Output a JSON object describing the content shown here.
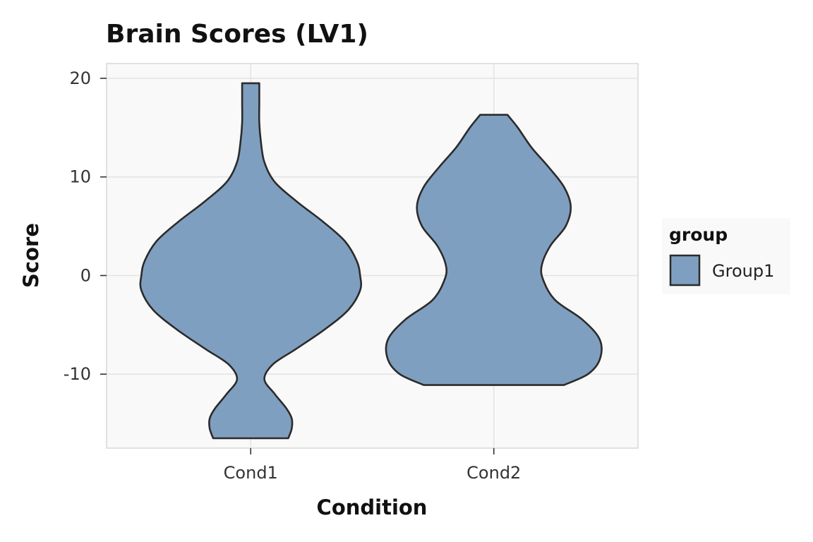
{
  "chart_data": {
    "type": "violin",
    "title": "Brain Scores (LV1)",
    "xlabel": "Condition",
    "ylabel": "Score",
    "categories": [
      "Cond1",
      "Cond2"
    ],
    "ylim": [
      -17.5,
      21.5
    ],
    "yticks": [
      20,
      10,
      0,
      -10
    ],
    "ytick_labels": [
      "20",
      "10",
      "0",
      "-10"
    ],
    "grid": true,
    "legend": {
      "title": "group",
      "position": "right",
      "entries": [
        "Group1"
      ]
    },
    "series": [
      {
        "name": "Group1",
        "color": "#7f9fc0",
        "outline": "#2b2b2b",
        "violins": [
          {
            "category": "Cond1",
            "min": -16.5,
            "max": 19.5,
            "profile": [
              [
                -16.5,
                0.22
              ],
              [
                -15.5,
                0.24
              ],
              [
                -14.5,
                0.24
              ],
              [
                -13.5,
                0.21
              ],
              [
                -12,
                0.14
              ],
              [
                -10.5,
                0.08
              ],
              [
                -9,
                0.13
              ],
              [
                -7.5,
                0.26
              ],
              [
                -5.5,
                0.43
              ],
              [
                -3.5,
                0.57
              ],
              [
                -1.5,
                0.64
              ],
              [
                0,
                0.64
              ],
              [
                1.5,
                0.62
              ],
              [
                3.5,
                0.55
              ],
              [
                5.5,
                0.42
              ],
              [
                7.5,
                0.27
              ],
              [
                9.5,
                0.14
              ],
              [
                11.5,
                0.08
              ],
              [
                13.5,
                0.06
              ],
              [
                15.5,
                0.05
              ],
              [
                17.5,
                0.05
              ],
              [
                19.5,
                0.05
              ]
            ]
          },
          {
            "category": "Cond2",
            "min": -11.1,
            "max": 16.3,
            "profile": [
              [
                -11.1,
                0.41
              ],
              [
                -10,
                0.55
              ],
              [
                -8.5,
                0.62
              ],
              [
                -6.5,
                0.62
              ],
              [
                -4.5,
                0.52
              ],
              [
                -2.5,
                0.36
              ],
              [
                -0.5,
                0.29
              ],
              [
                1,
                0.28
              ],
              [
                3,
                0.33
              ],
              [
                5,
                0.42
              ],
              [
                7,
                0.45
              ],
              [
                9,
                0.41
              ],
              [
                11,
                0.32
              ],
              [
                13,
                0.22
              ],
              [
                15,
                0.14
              ],
              [
                16.3,
                0.08
              ]
            ]
          }
        ]
      }
    ]
  }
}
